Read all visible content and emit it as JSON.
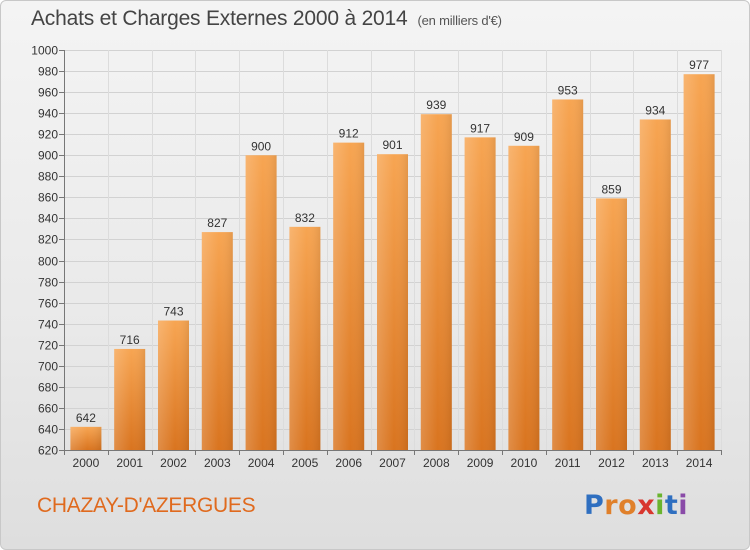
{
  "title": "Achats et Charges Externes 2000 à 2014",
  "subtitle": "(en milliers d'€)",
  "town": "CHAZAY-D'AZERGUES",
  "logo": {
    "letters": [
      "P",
      "r",
      "o",
      "x",
      "i",
      "t",
      "i"
    ],
    "colors": [
      "#2f6fc0",
      "#e0802a",
      "#e0802a",
      "#d8362e",
      "#6ab42e",
      "#2f6fc0",
      "#8a4ba8"
    ]
  },
  "chart_data": {
    "type": "bar",
    "categories": [
      "2000",
      "2001",
      "2002",
      "2003",
      "2004",
      "2005",
      "2006",
      "2007",
      "2008",
      "2009",
      "2010",
      "2011",
      "2012",
      "2013",
      "2014"
    ],
    "values": [
      642,
      716,
      743,
      827,
      900,
      832,
      912,
      901,
      939,
      917,
      909,
      953,
      859,
      934,
      977
    ],
    "ylim": [
      620,
      1000
    ],
    "yticks": [
      620,
      640,
      660,
      680,
      700,
      720,
      740,
      760,
      780,
      800,
      820,
      840,
      860,
      880,
      900,
      920,
      940,
      960,
      980,
      1000
    ],
    "bar_color": "#f39c3c",
    "grid": true
  }
}
